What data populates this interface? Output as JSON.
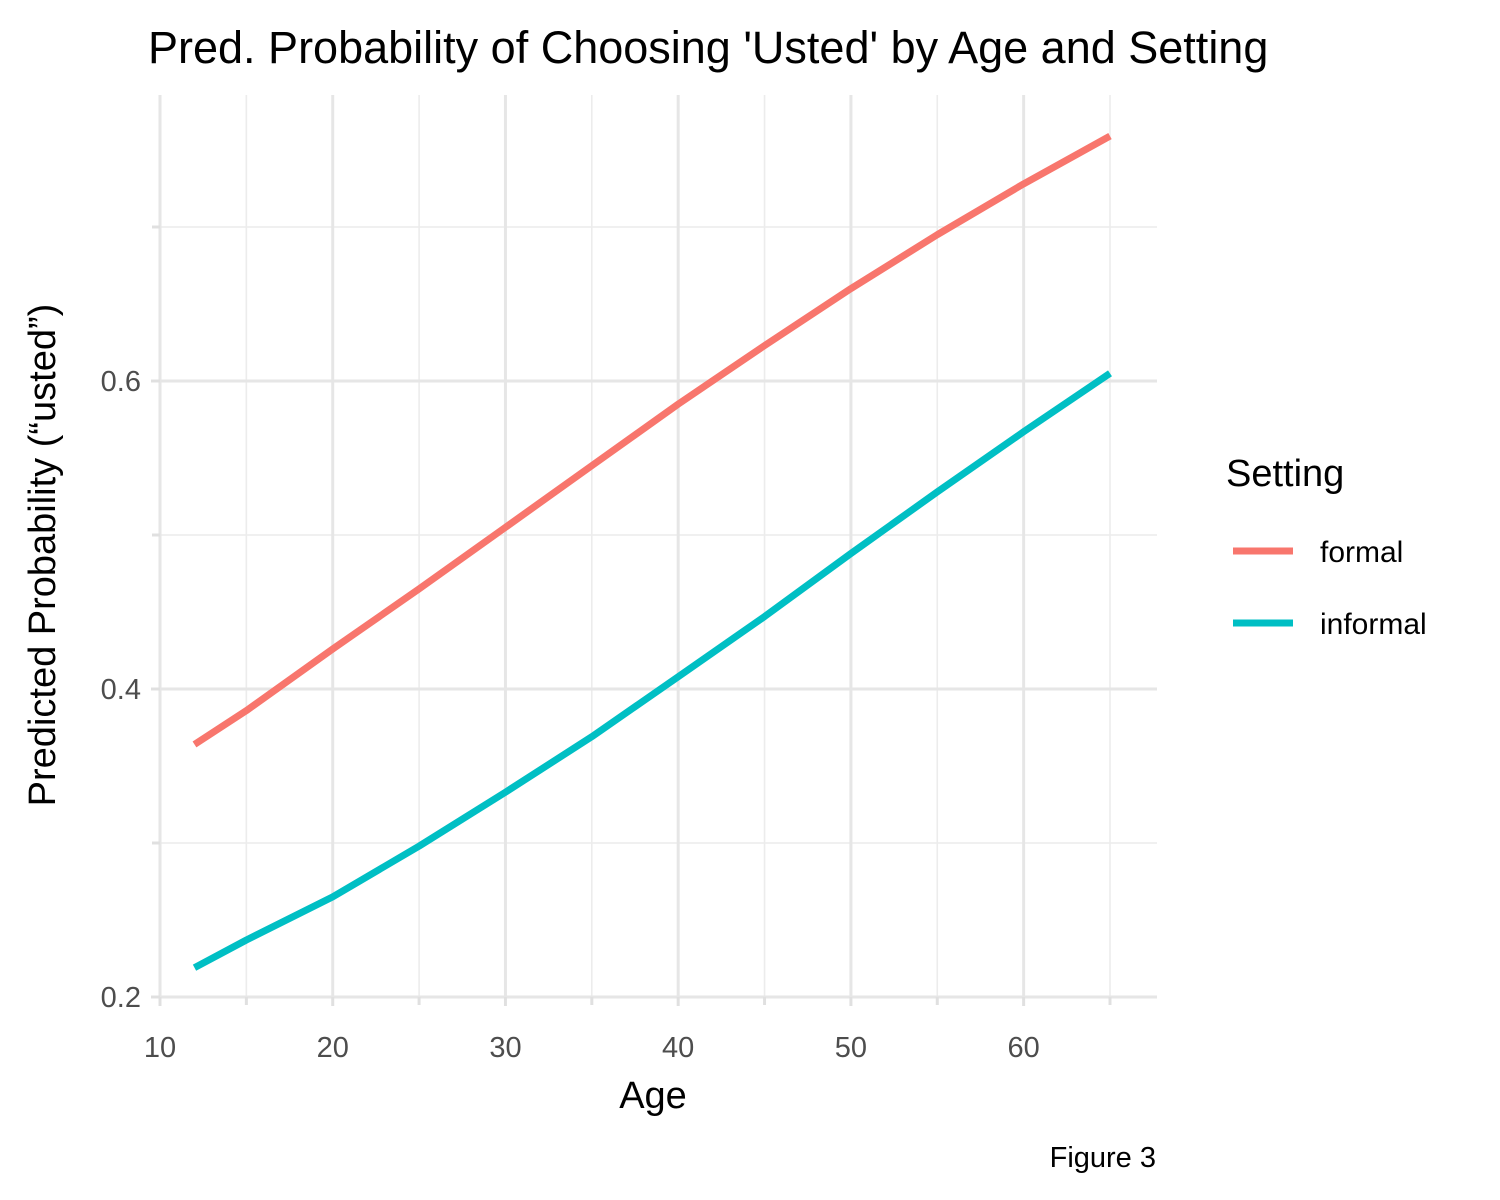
{
  "chart_data": {
    "type": "line",
    "title": "Pred. Probability of Choosing 'Usted' by Age and Setting",
    "xlabel": "Age",
    "ylabel": "Predicted Probability (“usted”)",
    "caption": "Figure 3",
    "xlim": [
      10,
      67
    ],
    "ylim": [
      0.2,
      0.77
    ],
    "x_ticks": [
      10,
      20,
      30,
      40,
      50,
      60
    ],
    "x_tick_labels": [
      "10",
      "20",
      "30",
      "40",
      "50",
      "60"
    ],
    "x_minor_ticks": [
      15,
      25,
      35,
      45,
      55,
      65
    ],
    "y_ticks": [
      0.2,
      0.4,
      0.6
    ],
    "y_tick_labels": [
      "0.2",
      "0.4",
      "0.6"
    ],
    "y_minor_ticks": [
      0.3,
      0.5,
      0.7
    ],
    "grid": true,
    "legend": {
      "title": "Setting",
      "placement": "right"
    },
    "x": [
      12,
      15,
      20,
      25,
      30,
      35,
      40,
      45,
      50,
      55,
      60,
      65
    ],
    "series": [
      {
        "name": "formal",
        "color": "#F8766D",
        "values": [
          0.364,
          0.386,
          0.426,
          0.465,
          0.505,
          0.545,
          0.585,
          0.623,
          0.66,
          0.695,
          0.728,
          0.759
        ]
      },
      {
        "name": "informal",
        "color": "#00BFC4",
        "values": [
          0.219,
          0.237,
          0.265,
          0.298,
          0.333,
          0.369,
          0.408,
          0.447,
          0.488,
          0.528,
          0.567,
          0.605
        ]
      }
    ]
  }
}
